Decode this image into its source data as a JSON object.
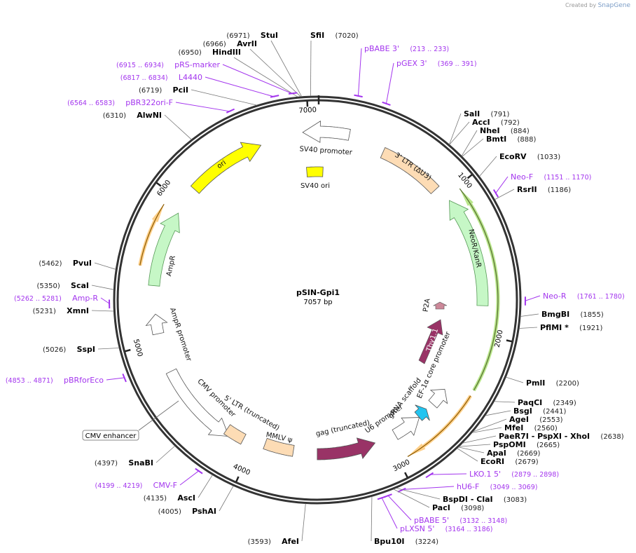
{
  "credit": {
    "prefix": "Created by",
    "brand": "SnapGene"
  },
  "plasmid": {
    "name": "pSIN-Gpi1",
    "length_label": "7057 bp",
    "length": 7057
  },
  "ticks": [
    "1000",
    "2000",
    "3000",
    "4000",
    "5000",
    "6000",
    "7000"
  ],
  "features": [
    {
      "name": "ori",
      "start": 6116,
      "end": 6665,
      "dir": 1,
      "color": "#ffff00"
    },
    {
      "name": "SV40 promoter",
      "start": 6959,
      "end": 216,
      "dir": -1,
      "color": "#ffffff"
    },
    {
      "name": "SV40 ori",
      "start": 6965,
      "end": 49,
      "dir": 0,
      "color": "#ffff00"
    },
    {
      "name": "3' LTR (ΔU3)",
      "start": 470,
      "end": 921,
      "dir": 0,
      "color": "#fddcb5"
    },
    {
      "name": "NeoR/KanR",
      "start": 1039,
      "end": 1803,
      "dir": -1,
      "color": "#c6f7c6"
    },
    {
      "name": "AmpR",
      "start": 5391,
      "end": 5920,
      "dir": 1,
      "color": "#c6f7c6"
    },
    {
      "name": "AmpR promoter",
      "start": 5058,
      "end": 5195,
      "dir": 1,
      "color": "#ffffff"
    },
    {
      "name": "CMV promoter",
      "start": 4175,
      "end": 4783,
      "dir": -1,
      "color": "#ffffff"
    },
    {
      "name": "5' LTR (truncated)",
      "start": 4077,
      "end": 4214,
      "dir": 0,
      "color": "#fddcb5"
    },
    {
      "name": "MMLV ψ",
      "start": 3705,
      "end": 3920,
      "dir": 0,
      "color": "#fddcb5"
    },
    {
      "name": "gag (truncated)",
      "start": 3097,
      "end": 3529,
      "dir": -1,
      "color": "#993366"
    },
    {
      "name": "U6 promoter",
      "start": 2725,
      "end": 2940,
      "dir": -1,
      "color": "#ffffff"
    },
    {
      "name": "gRNA scaffold",
      "start": 2646,
      "end": 2725,
      "dir": -1,
      "color": "#22c4f0"
    },
    {
      "name": "EF-1α core promoter",
      "start": 2450,
      "end": 2588,
      "dir": -1,
      "color": "#ffffff"
    },
    {
      "name": "Thy1.1",
      "color": "#993366"
    },
    {
      "name": "P2A",
      "color": "#cc8899"
    }
  ],
  "sites": [
    {
      "name": "StuI",
      "pos": "(6971)",
      "bp": 6971,
      "type": "enzyme"
    },
    {
      "name": "AvrII",
      "pos": "(6966)",
      "bp": 6966,
      "type": "enzyme"
    },
    {
      "name": "HindIII",
      "pos": "(6950)",
      "bp": 6950,
      "type": "enzyme"
    },
    {
      "name": "pRS-marker",
      "pos": "(6915 .. 6934)",
      "bp": 6925,
      "type": "primer"
    },
    {
      "name": "L4440",
      "pos": "(6817 .. 6834)",
      "bp": 6825,
      "type": "primer"
    },
    {
      "name": "PciI",
      "pos": "(6719)",
      "bp": 6719,
      "type": "enzyme"
    },
    {
      "name": "pBR322ori-F",
      "pos": "(6564 .. 6583)",
      "bp": 6573,
      "type": "primer"
    },
    {
      "name": "AlwNI",
      "pos": "(6310)",
      "bp": 6310,
      "type": "enzyme"
    },
    {
      "name": "SfiI",
      "pos": "(7020)",
      "bp": 7020,
      "type": "enzyme"
    },
    {
      "name": "pBABE 3'",
      "pos": "(213 .. 233)",
      "bp": 223,
      "type": "primer"
    },
    {
      "name": "pGEX 3'",
      "pos": "(369 .. 391)",
      "bp": 380,
      "type": "primer"
    },
    {
      "name": "SalI",
      "pos": "(791)",
      "bp": 791,
      "type": "enzyme"
    },
    {
      "name": "AccI",
      "pos": "(792)",
      "bp": 792,
      "type": "enzyme"
    },
    {
      "name": "NheI",
      "pos": "(884)",
      "bp": 884,
      "type": "enzyme"
    },
    {
      "name": "BmtI",
      "pos": "(888)",
      "bp": 888,
      "type": "enzyme"
    },
    {
      "name": "EcoRV",
      "pos": "(1033)",
      "bp": 1033,
      "type": "enzyme"
    },
    {
      "name": "Neo-F",
      "pos": "(1151 .. 1170)",
      "bp": 1160,
      "type": "primer"
    },
    {
      "name": "RsrII",
      "pos": "(1186)",
      "bp": 1186,
      "type": "enzyme"
    },
    {
      "name": "Neo-R",
      "pos": "(1761 .. 1780)",
      "bp": 1770,
      "type": "primer"
    },
    {
      "name": "BmgBI",
      "pos": "(1855)",
      "bp": 1855,
      "type": "enzyme"
    },
    {
      "name": "PflMI *",
      "pos": "(1921)",
      "bp": 1921,
      "type": "enzyme"
    },
    {
      "name": "PmlI",
      "pos": "(2200)",
      "bp": 2200,
      "type": "enzyme"
    },
    {
      "name": "PaqCI",
      "pos": "(2349)",
      "bp": 2349,
      "type": "enzyme"
    },
    {
      "name": "BsgI",
      "pos": "(2441)",
      "bp": 2441,
      "type": "enzyme"
    },
    {
      "name": "AgeI",
      "pos": "(2553)",
      "bp": 2553,
      "type": "enzyme"
    },
    {
      "name": "MfeI",
      "pos": "(2560)",
      "bp": 2560,
      "type": "enzyme"
    },
    {
      "name": "PaeR7I   - PspXI   - XhoI",
      "pos": "(2638)",
      "bp": 2638,
      "type": "enzyme"
    },
    {
      "name": "PspOMI",
      "pos": "(2665)",
      "bp": 2665,
      "type": "enzyme"
    },
    {
      "name": "ApaI",
      "pos": "(2669)",
      "bp": 2669,
      "type": "enzyme"
    },
    {
      "name": "EcoRI",
      "pos": "(2679)",
      "bp": 2679,
      "type": "enzyme"
    },
    {
      "name": "LKO.1 5'",
      "pos": "(2879 .. 2898)",
      "bp": 2888,
      "type": "primer"
    },
    {
      "name": "hU6-F",
      "pos": "(3049 .. 3069)",
      "bp": 3059,
      "type": "primer"
    },
    {
      "name": "BspDI   - ClaI",
      "pos": "(3083)",
      "bp": 3083,
      "type": "enzyme"
    },
    {
      "name": "PacI",
      "pos": "(3098)",
      "bp": 3098,
      "type": "enzyme"
    },
    {
      "name": "pBABE 5'",
      "pos": "(3132 .. 3148)",
      "bp": 3140,
      "type": "primer"
    },
    {
      "name": "pLXSN 5'",
      "pos": "(3164 .. 3186)",
      "bp": 3175,
      "type": "primer"
    },
    {
      "name": "Bpu10I",
      "pos": "(3224)",
      "bp": 3224,
      "type": "enzyme"
    },
    {
      "name": "AfeI",
      "pos": "(3593)",
      "bp": 3593,
      "type": "enzyme"
    },
    {
      "name": "PshAI",
      "pos": "(4005)",
      "bp": 4005,
      "type": "enzyme"
    },
    {
      "name": "AscI",
      "pos": "(4135)",
      "bp": 4135,
      "type": "enzyme"
    },
    {
      "name": "CMV-F",
      "pos": "(4199 .. 4219)",
      "bp": 4209,
      "type": "primer"
    },
    {
      "name": "SnaBI",
      "pos": "(4397)",
      "bp": 4397,
      "type": "enzyme"
    },
    {
      "name": "pBRforEco",
      "pos": "(4853 .. 4871)",
      "bp": 4862,
      "type": "primer"
    },
    {
      "name": "SspI",
      "pos": "(5026)",
      "bp": 5026,
      "type": "enzyme"
    },
    {
      "name": "XmnI",
      "pos": "(5231)",
      "bp": 5231,
      "type": "enzyme"
    },
    {
      "name": "Amp-R",
      "pos": "(5262 .. 5281)",
      "bp": 5271,
      "type": "primer"
    },
    {
      "name": "ScaI",
      "pos": "(5350)",
      "bp": 5350,
      "type": "enzyme"
    },
    {
      "name": "PvuI",
      "pos": "(5462)",
      "bp": 5462,
      "type": "enzyme"
    }
  ],
  "misc_feature_label": {
    "name": "CMV enhancer"
  }
}
